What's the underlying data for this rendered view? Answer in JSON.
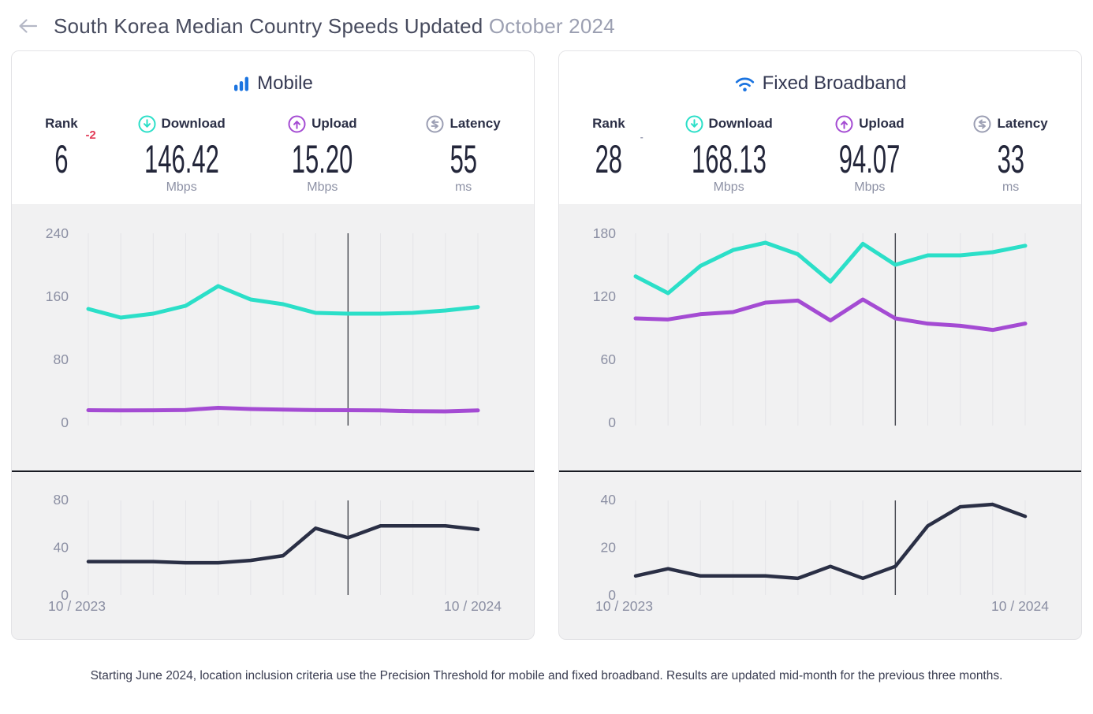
{
  "header": {
    "title_main": "South Korea Median Country Speeds Updated",
    "title_date": "October 2024"
  },
  "colors": {
    "download_teal": "#2BDFC8",
    "upload_purple": "#A44BD3",
    "latency_navy": "#2A2F45",
    "brand_blue": "#1B74E0",
    "rank_change_red": "#E23B57",
    "latency_icon_gray": "#9B9EB3",
    "axis_text_gray": "#8B8FA3",
    "panel_bg": "#F1F1F2"
  },
  "panels": [
    {
      "id": "mobile",
      "title": "Mobile",
      "stats": {
        "rank": {
          "label": "Rank",
          "value": "6",
          "change": "-2"
        },
        "download": {
          "label": "Download",
          "value": "146.42",
          "unit": "Mbps"
        },
        "upload": {
          "label": "Upload",
          "value": "15.20",
          "unit": "Mbps"
        },
        "latency": {
          "label": "Latency",
          "value": "55",
          "unit": "ms"
        }
      }
    },
    {
      "id": "fixed-broadband",
      "title": "Fixed Broadband",
      "stats": {
        "rank": {
          "label": "Rank",
          "value": "28",
          "change": "-"
        },
        "download": {
          "label": "Download",
          "value": "168.13",
          "unit": "Mbps"
        },
        "upload": {
          "label": "Upload",
          "value": "94.07",
          "unit": "Mbps"
        },
        "latency": {
          "label": "Latency",
          "value": "33",
          "unit": "ms"
        }
      }
    }
  ],
  "chart_data": [
    {
      "id": "mobile-speed",
      "type": "line",
      "ylim": [
        0,
        240
      ],
      "yticks": [
        0,
        80,
        160,
        240
      ],
      "n_points": 13,
      "marker_index": 8,
      "x_range": [
        "10 / 2023",
        "10 / 2024"
      ],
      "grid": true,
      "series": [
        {
          "name": "Download (Mbps)",
          "color": "#2BDFC8",
          "values": [
            144,
            133,
            138,
            148,
            173,
            156,
            150,
            139,
            138,
            138,
            139,
            142,
            146.42
          ]
        },
        {
          "name": "Upload (Mbps)",
          "color": "#A44BD3",
          "values": [
            15.5,
            15.2,
            15.4,
            15.8,
            18.5,
            17,
            16.2,
            15.6,
            15.5,
            15.2,
            14.2,
            14,
            15.2
          ]
        }
      ]
    },
    {
      "id": "mobile-latency",
      "type": "line",
      "ylim": [
        0,
        80
      ],
      "yticks": [
        0,
        40,
        80
      ],
      "n_points": 13,
      "marker_index": 8,
      "x_range": [
        "10 / 2023",
        "10 / 2024"
      ],
      "grid": true,
      "series": [
        {
          "name": "Latency (ms)",
          "color": "#2A2F45",
          "values": [
            28,
            28,
            28,
            27,
            27,
            29,
            33,
            56,
            48,
            58,
            58,
            58,
            55
          ]
        }
      ]
    },
    {
      "id": "fixed-speed",
      "type": "line",
      "ylim": [
        0,
        180
      ],
      "yticks": [
        0,
        60,
        120,
        180
      ],
      "n_points": 13,
      "marker_index": 8,
      "x_range": [
        "10 / 2023",
        "10 / 2024"
      ],
      "grid": true,
      "series": [
        {
          "name": "Download (Mbps)",
          "color": "#2BDFC8",
          "values": [
            139,
            123,
            149,
            164,
            171,
            160,
            134,
            170,
            150,
            159,
            159,
            162,
            168.13
          ]
        },
        {
          "name": "Upload (Mbps)",
          "color": "#A44BD3",
          "values": [
            99,
            98,
            103,
            105,
            114,
            116,
            97,
            117,
            99,
            94,
            92,
            88,
            94.07
          ]
        }
      ]
    },
    {
      "id": "fixed-latency",
      "type": "line",
      "ylim": [
        0,
        40
      ],
      "yticks": [
        0,
        20,
        40
      ],
      "n_points": 13,
      "marker_index": 8,
      "x_range": [
        "10 / 2023",
        "10 / 2024"
      ],
      "grid": true,
      "series": [
        {
          "name": "Latency (ms)",
          "color": "#2A2F45",
          "values": [
            8,
            11,
            8,
            8,
            8,
            7,
            12,
            7,
            12,
            29,
            37,
            38,
            33
          ]
        }
      ]
    }
  ],
  "footer": {
    "note": "Starting June 2024, location inclusion criteria use the Precision Threshold for mobile and fixed broadband. Results are updated mid-month for the previous three months."
  }
}
